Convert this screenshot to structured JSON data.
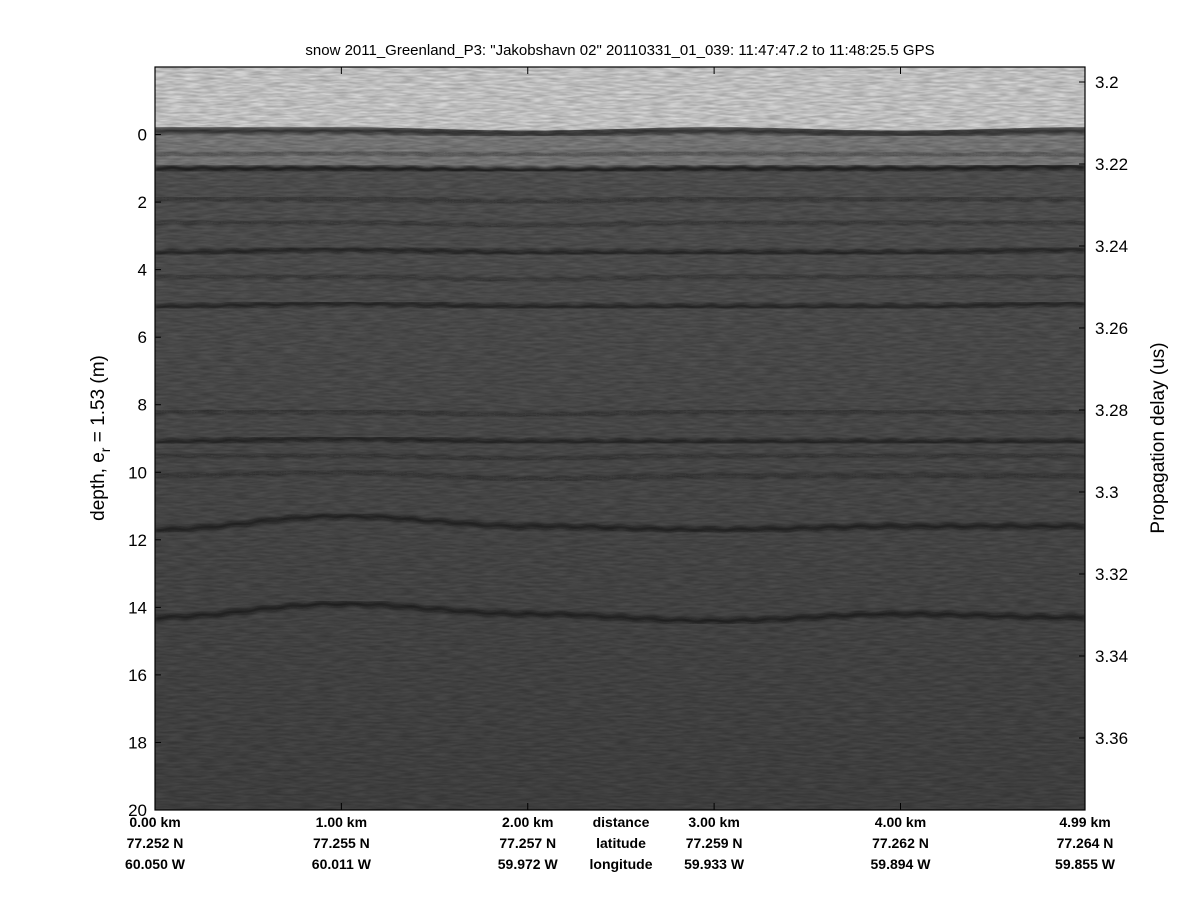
{
  "chart_data": {
    "type": "heatmap",
    "title": "snow 2011_Greenland_P3: \"Jakobshavn 02\"  20110331_01_039: 11:47:47.2 to 11:48:25.5 GPS",
    "ylabel_left": {
      "main": "depth, e",
      "sub": "r",
      "rest": " = 1.53 (m)"
    },
    "ylabel_right": "Propagation delay (us)",
    "colormap": "gray",
    "y_left_range": [
      -2,
      20
    ],
    "y_left_ticks": [
      0,
      2,
      4,
      6,
      8,
      10,
      12,
      14,
      16,
      18,
      20
    ],
    "y_right_ticks": [
      "3.2",
      "3.22",
      "3.24",
      "3.26",
      "3.28",
      "3.3",
      "3.32",
      "3.34",
      "3.36"
    ],
    "x_range_km": [
      0,
      4.99
    ],
    "bottom_row_labels": [
      "distance",
      "latitude",
      "longitude"
    ],
    "x_ticks": [
      {
        "km": 0,
        "distance": "0.00 km",
        "latitude": "77.252 N",
        "longitude": "60.050 W"
      },
      {
        "km": 1,
        "distance": "1.00 km",
        "latitude": "77.255 N",
        "longitude": "60.011 W"
      },
      {
        "km": 2,
        "distance": "2.00 km",
        "latitude": "77.257 N",
        "longitude": "59.972 W"
      },
      {
        "km": 3,
        "distance": "3.00 km",
        "latitude": "77.259 N",
        "longitude": "59.933 W"
      },
      {
        "km": 4,
        "distance": "4.00 km",
        "latitude": "77.262 N",
        "longitude": "59.894 W"
      },
      {
        "km": 4.99,
        "distance": "4.99 km",
        "latitude": "77.264 N",
        "longitude": "59.855 W"
      }
    ],
    "layer_profile_km": [
      0,
      1,
      2,
      3,
      4,
      4.99
    ],
    "layers_depth_m": [
      {
        "depth": [
          -0.1,
          -0.1,
          0.0,
          -0.1,
          0.0,
          -0.1
        ],
        "strength": 0.7
      },
      {
        "depth": [
          0.6,
          0.55,
          0.6,
          0.55,
          0.6,
          0.6
        ],
        "strength": 0.35
      },
      {
        "depth": [
          1.0,
          1.0,
          1.05,
          1.0,
          1.0,
          0.95
        ],
        "strength": 1.0
      },
      {
        "depth": [
          1.9,
          1.9,
          2.0,
          1.9,
          1.9,
          1.9
        ],
        "strength": 0.4
      },
      {
        "depth": [
          2.6,
          2.6,
          2.7,
          2.6,
          2.6,
          2.6
        ],
        "strength": 0.3
      },
      {
        "depth": [
          3.5,
          3.4,
          3.5,
          3.5,
          3.5,
          3.4
        ],
        "strength": 0.8
      },
      {
        "depth": [
          4.2,
          4.2,
          4.3,
          4.2,
          4.2,
          4.2
        ],
        "strength": 0.3
      },
      {
        "depth": [
          5.1,
          5.0,
          5.1,
          5.1,
          5.1,
          5.0
        ],
        "strength": 0.8
      },
      {
        "depth": [
          8.2,
          8.2,
          8.3,
          8.2,
          8.2,
          8.2
        ],
        "strength": 0.35
      },
      {
        "depth": [
          9.1,
          9.0,
          9.1,
          9.1,
          9.1,
          9.1
        ],
        "strength": 0.8
      },
      {
        "depth": [
          9.5,
          9.5,
          9.6,
          9.5,
          9.5,
          9.5
        ],
        "strength": 0.3
      },
      {
        "depth": [
          10.1,
          10.0,
          10.2,
          10.1,
          10.1,
          10.1
        ],
        "strength": 0.35
      },
      {
        "depth": [
          11.7,
          11.3,
          11.6,
          11.7,
          11.6,
          11.6
        ],
        "strength": 0.85
      },
      {
        "depth": [
          14.3,
          13.9,
          14.2,
          14.4,
          14.2,
          14.3
        ],
        "strength": 0.85
      }
    ]
  }
}
